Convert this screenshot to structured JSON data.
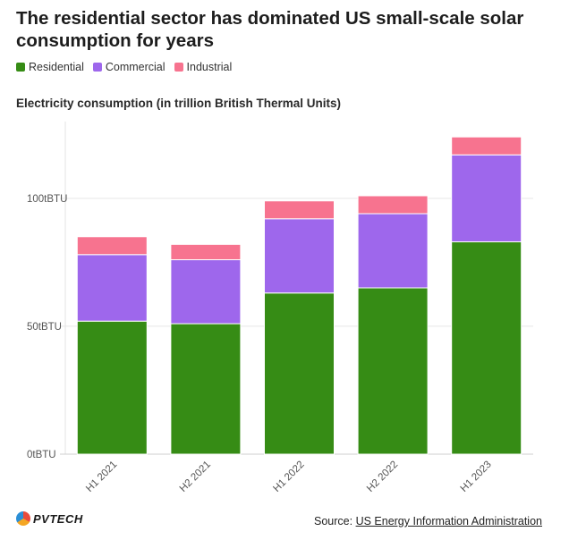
{
  "header": {
    "title": "The residential sector has dominated US small-scale solar consumption for years",
    "subtitle": "Electricity consumption (in trillion British Thermal Units)"
  },
  "footer": {
    "logo_text": "PVTECH",
    "source_label": "Source:",
    "source_text": "US Energy Information Administration"
  },
  "chart_data": {
    "type": "bar",
    "stacked": true,
    "categories": [
      "H1 2021",
      "H2 2021",
      "H1 2022",
      "H2 2022",
      "H1 2023"
    ],
    "series": [
      {
        "name": "Residential",
        "color": "#368c15",
        "values": [
          52,
          51,
          63,
          65,
          83
        ]
      },
      {
        "name": "Commercial",
        "color": "#9e67ec",
        "values": [
          26,
          25,
          29,
          29,
          34
        ]
      },
      {
        "name": "Industrial",
        "color": "#f7738f",
        "values": [
          7,
          6,
          7,
          7,
          7
        ]
      }
    ],
    "ylim": [
      0,
      130
    ],
    "yticks": [
      0,
      50,
      100
    ],
    "ytick_labels": [
      "0tBTU",
      "50tBTU",
      "100tBTU"
    ],
    "grid": true,
    "legend_position": "top-left"
  }
}
